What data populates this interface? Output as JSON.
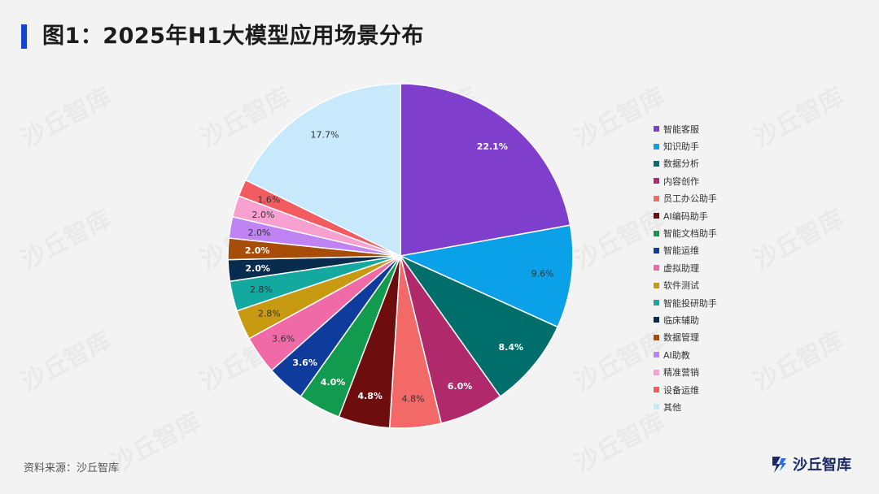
{
  "header": {
    "title": "图1：2025年H1大模型应用场景分布"
  },
  "footer": {
    "source": "资料来源：沙丘智库",
    "logo_text": "沙丘智库"
  },
  "watermark_text": "沙丘智库",
  "colors": {
    "title_accent": "#1746c9",
    "logo": "#1b2a66"
  },
  "chart_data": {
    "type": "pie",
    "title": "图1：2025年H1大模型应用场景分布",
    "legend_position": "right",
    "categories": [
      "智能客服",
      "知识助手",
      "数据分析",
      "内容创作",
      "员工办公助手",
      "AI编码助手",
      "智能文档助手",
      "智能运维",
      "虚拟助理",
      "软件测试",
      "智能投研助手",
      "临床辅助",
      "数据管理",
      "AI助教",
      "精准营销",
      "设备运维",
      "其他"
    ],
    "values": [
      22.1,
      9.6,
      8.4,
      6.0,
      4.8,
      4.8,
      4.0,
      3.6,
      3.6,
      2.8,
      2.8,
      2.0,
      2.0,
      2.0,
      2.0,
      1.6,
      17.7
    ],
    "labels": [
      "22.1%",
      "9.6%",
      "8.4%",
      "6.0%",
      "4.8%",
      "4.8%",
      "4.0%",
      "3.6%",
      "3.6%",
      "2.8%",
      "2.8%",
      "2.0%",
      "2.0%",
      "2.0%",
      "2.0%",
      "1.6%",
      "17.7%"
    ],
    "colors": [
      "#7f3fcc",
      "#0aa1e8",
      "#006e6b",
      "#b0296a",
      "#f36968",
      "#6d0d0d",
      "#129a4f",
      "#0f3c9c",
      "#f06aa8",
      "#c79a12",
      "#13a8a0",
      "#082c4e",
      "#a84c09",
      "#bf83f3",
      "#f8a0cf",
      "#f25c61",
      "#c7e9fb"
    ],
    "label_colors": [
      "#ffffff",
      "#333333",
      "#ffffff",
      "#ffffff",
      "#333333",
      "#ffffff",
      "#ffffff",
      "#ffffff",
      "#333333",
      "#333333",
      "#333333",
      "#ffffff",
      "#ffffff",
      "#333333",
      "#333333",
      "#333333",
      "#333333"
    ]
  }
}
